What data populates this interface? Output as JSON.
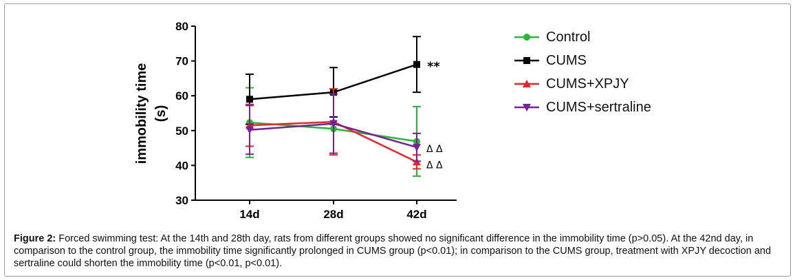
{
  "chart_data": {
    "type": "line",
    "ylabel": "immobility time (s)",
    "ylabel_lines": [
      "immobility time",
      "(s)"
    ],
    "xlabel": "",
    "categories": [
      "14d",
      "28d",
      "42d"
    ],
    "ylim": [
      30,
      80
    ],
    "yticks": [
      30,
      40,
      50,
      60,
      70,
      80
    ],
    "legend_position": "right",
    "series": [
      {
        "name": "Control",
        "marker": "circle",
        "color": "#22bb33",
        "values": [
          52.3,
          50.5,
          46.9
        ],
        "errors": [
          10.0,
          0,
          10.0
        ]
      },
      {
        "name": "CUMS",
        "marker": "square",
        "color": "#000000",
        "values": [
          59.0,
          61.0,
          69.0
        ],
        "errors": [
          7.2,
          7.1,
          8.0
        ]
      },
      {
        "name": "CUMS+XPJY",
        "marker": "triangle-up",
        "color": "#ee2222",
        "values": [
          51.5,
          52.5,
          41.0
        ],
        "errors": [
          6.0,
          9.5,
          2.0
        ]
      },
      {
        "name": "CUMS+sertraline",
        "marker": "triangle-down",
        "color": "#7a1f9a",
        "values": [
          50.2,
          52.0,
          45.2
        ],
        "errors": [
          7.0,
          8.5,
          4.0
        ]
      }
    ],
    "annotations": [
      {
        "text": "**",
        "category": "42d",
        "y": 69.0
      },
      {
        "text": "Δ Δ",
        "category": "42d",
        "y": 45.2
      },
      {
        "text": "Δ Δ",
        "category": "42d",
        "y": 40.6
      }
    ]
  },
  "caption": {
    "label": "Figure 2:",
    "text": " Forced swimming test: At the 14th and 28th day, rats from different groups showed no significant difference in the immobility time (p>0.05). At the 42nd day, in comparison to the control group, the immobility time significantly prolonged in CUMS group (p<0.01); in comparison to the CUMS group, treatment with XPJY decoction and sertraline could shorten the immobility time (p<0.01, p<0.01)."
  }
}
